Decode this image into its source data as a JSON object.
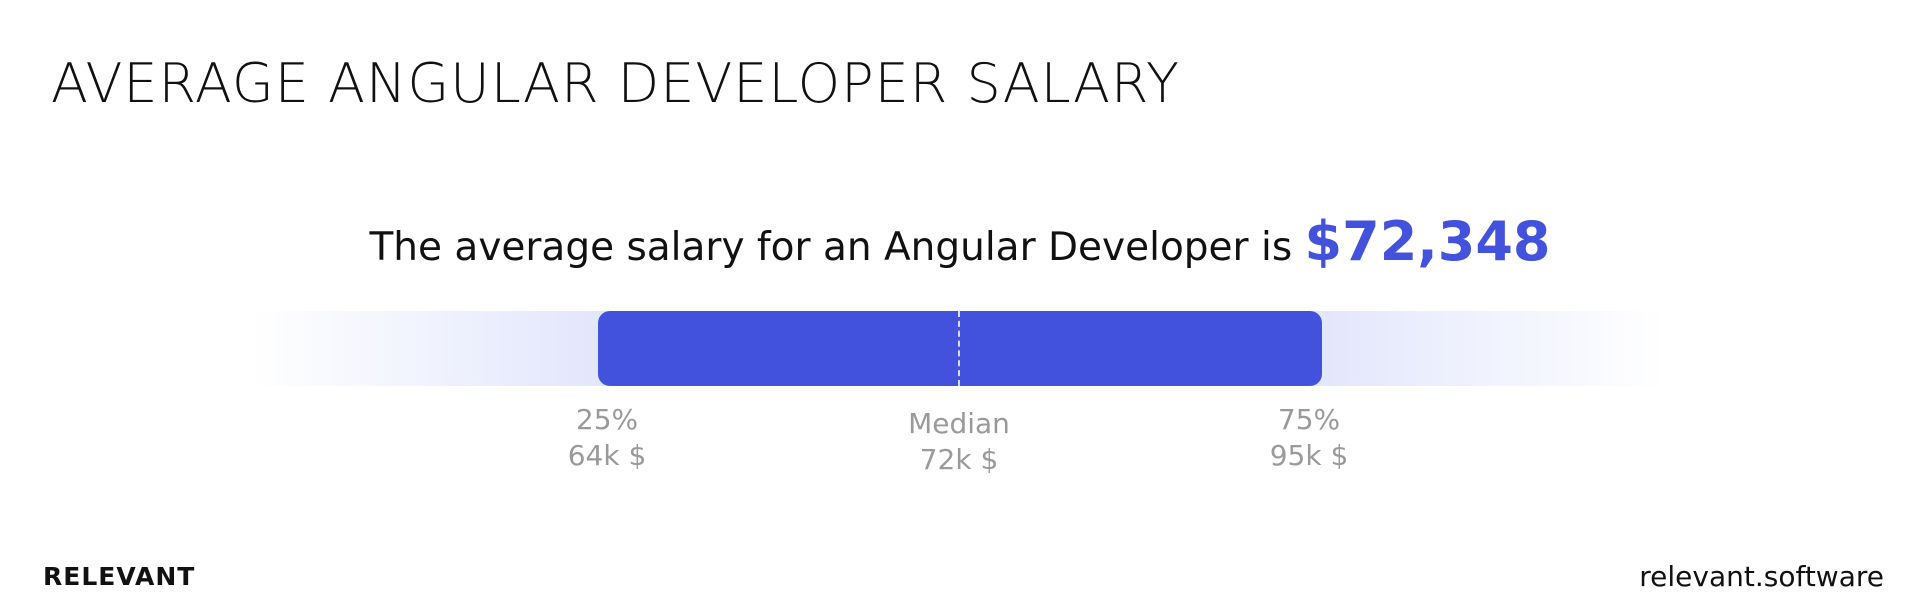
{
  "header": {
    "title": "AVERAGE ANGULAR DEVELOPER SALARY"
  },
  "summary": {
    "text": "The average salary for an Angular Developer is",
    "amount": "$72,348"
  },
  "range": {
    "markers": [
      {
        "label": "25%",
        "value": "64k $"
      },
      {
        "label": "Median",
        "value": "72k $"
      },
      {
        "label": "75%",
        "value": "95k $"
      }
    ]
  },
  "footer": {
    "brand": "RELEVANT",
    "website": "relevant.software"
  }
}
